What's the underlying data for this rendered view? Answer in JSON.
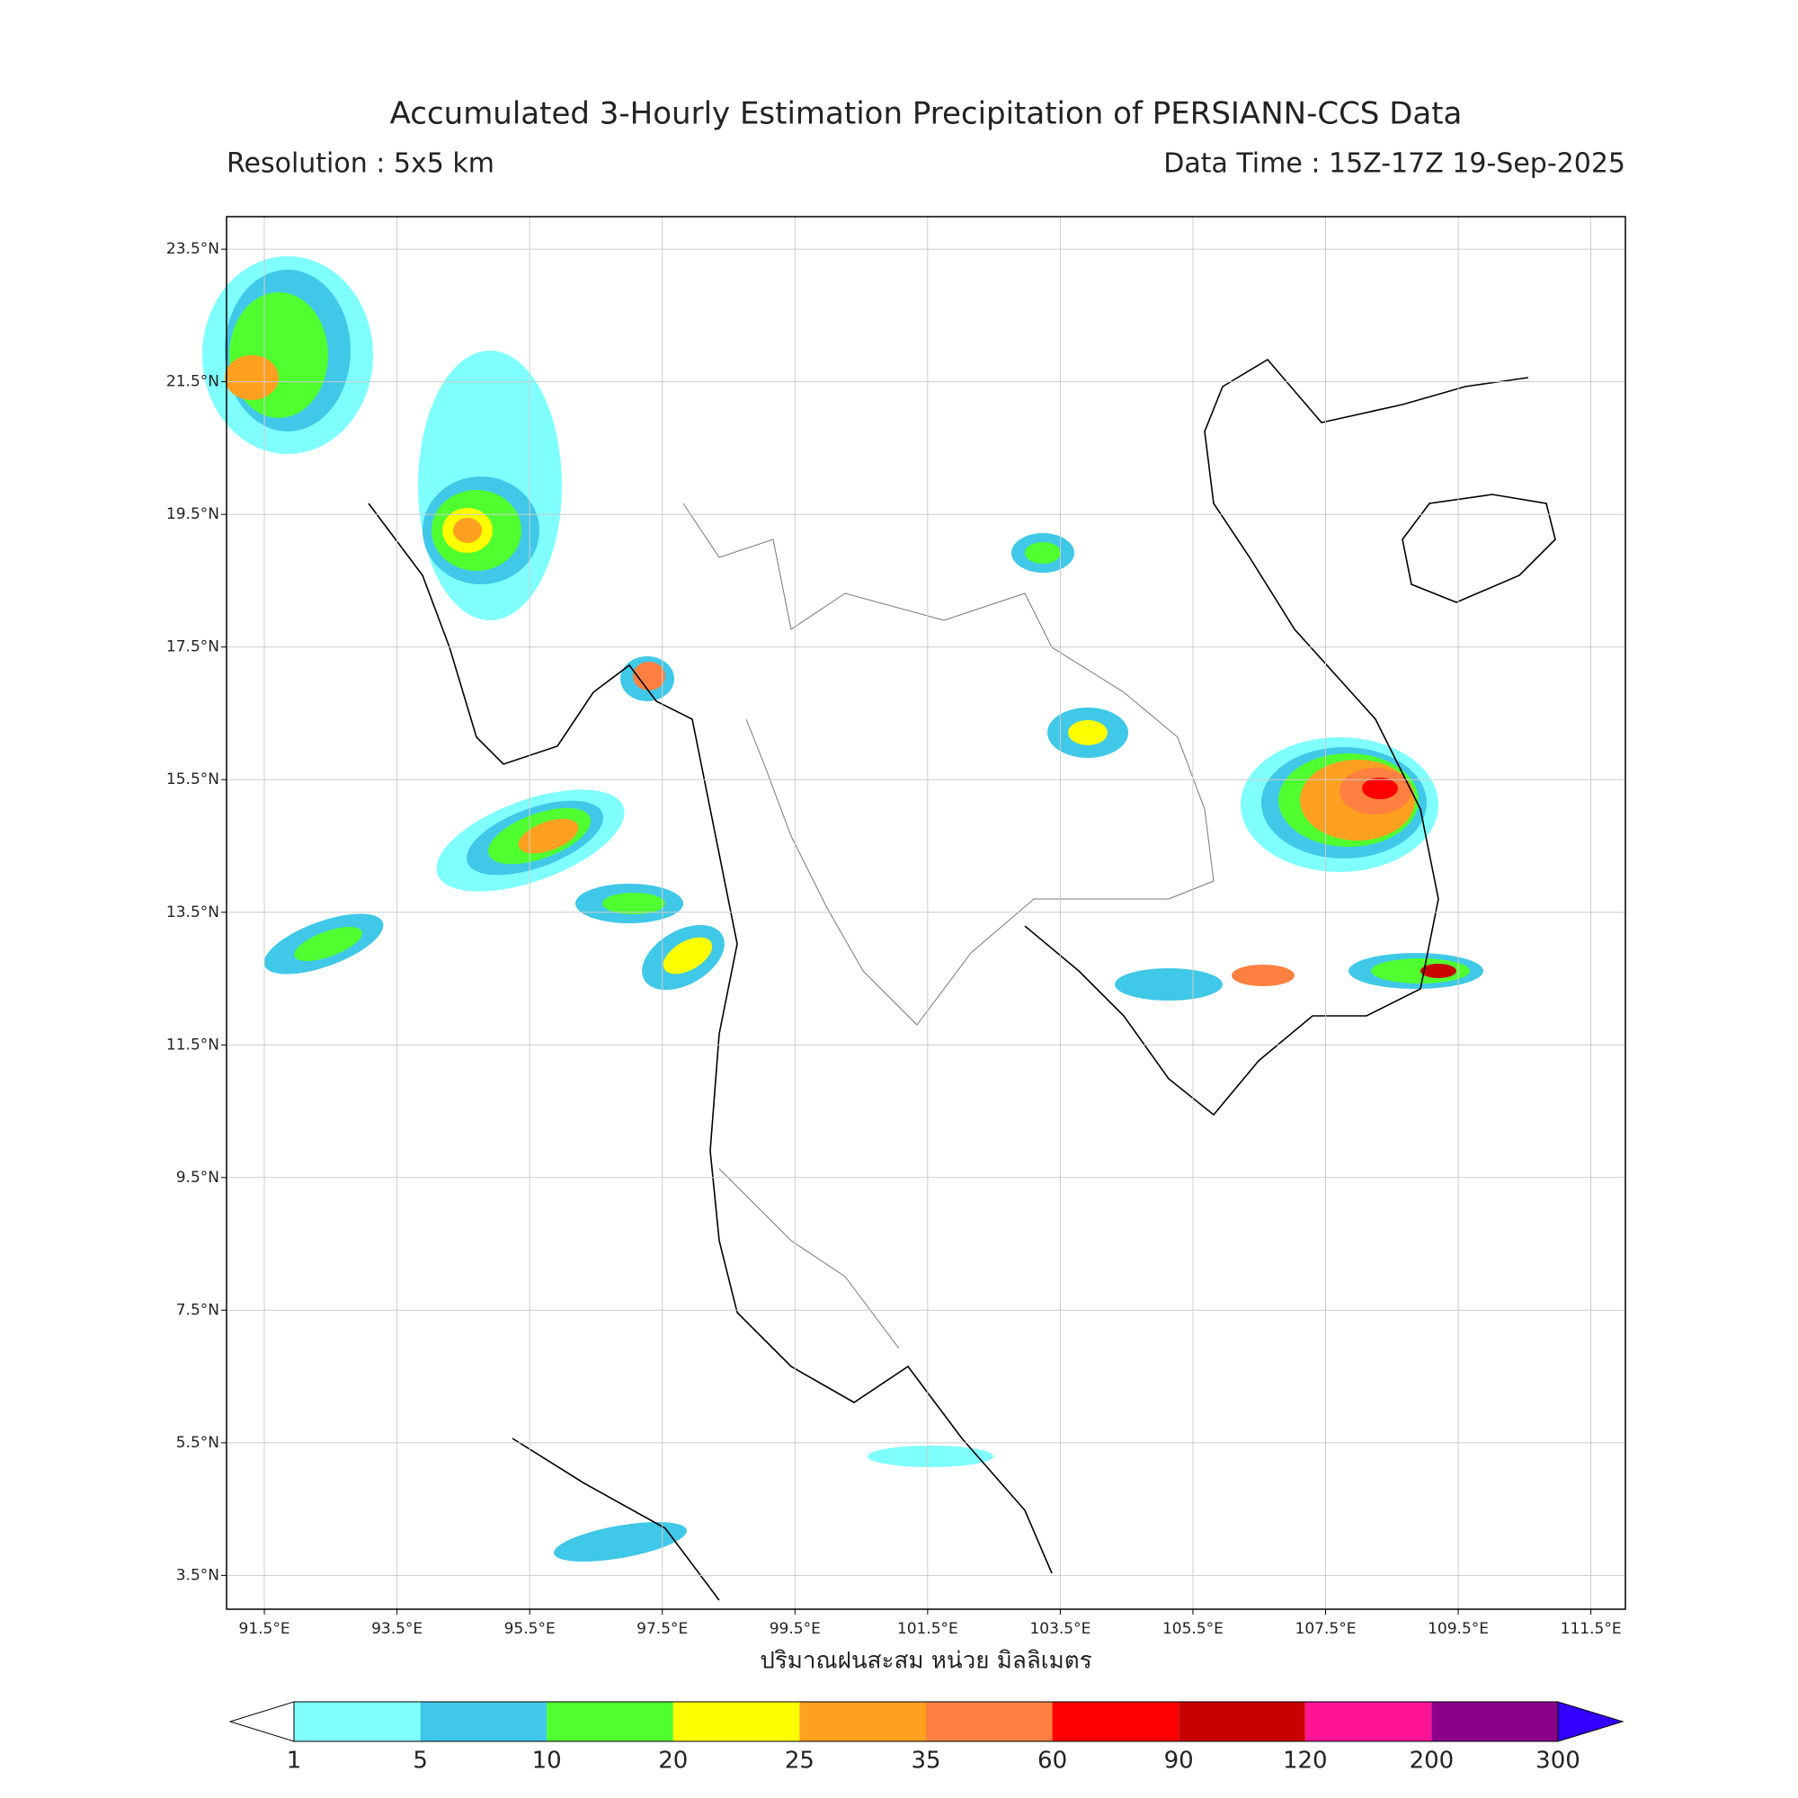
{
  "title": "Accumulated 3-Hourly Estimation Precipitation of PERSIANN-CCS Data",
  "resolution": "Resolution : 5x5 km",
  "data_time": "Data Time : 15Z-17Z 19-Sep-2025",
  "map": {
    "xlim": [
      90.93,
      112.02
    ],
    "ylim": [
      2.99,
      23.99
    ],
    "grid": true,
    "xticks": [
      {
        "value": 91.5,
        "label": "91.5°E"
      },
      {
        "value": 93.5,
        "label": "93.5°E"
      },
      {
        "value": 95.5,
        "label": "95.5°E"
      },
      {
        "value": 97.5,
        "label": "97.5°E"
      },
      {
        "value": 99.5,
        "label": "99.5°E"
      },
      {
        "value": 101.5,
        "label": "101.5°E"
      },
      {
        "value": 103.5,
        "label": "103.5°E"
      },
      {
        "value": 105.5,
        "label": "105.5°E"
      },
      {
        "value": 107.5,
        "label": "107.5°E"
      },
      {
        "value": 109.5,
        "label": "109.5°E"
      },
      {
        "value": 111.5,
        "label": "111.5°E"
      }
    ],
    "yticks": [
      {
        "value": 3.5,
        "label": "3.5°N"
      },
      {
        "value": 5.5,
        "label": "5.5°N"
      },
      {
        "value": 7.5,
        "label": "7.5°N"
      },
      {
        "value": 9.5,
        "label": "9.5°N"
      },
      {
        "value": 11.5,
        "label": "11.5°N"
      },
      {
        "value": 13.5,
        "label": "13.5°N"
      },
      {
        "value": 15.5,
        "label": "15.5°N"
      },
      {
        "value": 17.5,
        "label": "17.5°N"
      },
      {
        "value": 19.5,
        "label": "19.5°N"
      },
      {
        "value": 21.5,
        "label": "21.5°N"
      },
      {
        "value": 23.5,
        "label": "23.5°N"
      }
    ],
    "x_label": "ปริมาณฝนสะสม หน่วย มิลลิเมตร"
  },
  "colorbar": {
    "levels": [
      1,
      5,
      10,
      20,
      25,
      35,
      60,
      90,
      120,
      200,
      300
    ],
    "colors": [
      "#80ffff",
      "#40c8e8",
      "#50ff30",
      "#ffff00",
      "#ffa020",
      "#ff8040",
      "#ff0000",
      "#c80000",
      "#ff1493",
      "#8b008b"
    ],
    "under_color": "#ffffff",
    "over_color": "#3300ff"
  }
}
